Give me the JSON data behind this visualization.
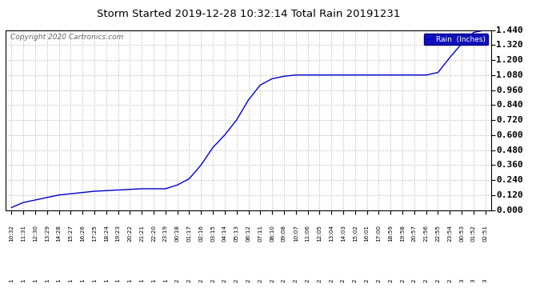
{
  "title": "Storm Started 2019-12-28 10:32:14 Total Rain 20191231",
  "copyright": "Copyright 2020 Cartronics.com",
  "legend_label": "Rain  (Inches)",
  "line_color": "#0000cc",
  "background_color": "#ffffff",
  "grid_color": "#b0b0b0",
  "ylim": [
    0.0,
    1.44
  ],
  "ytick_values": [
    0.0,
    0.12,
    0.24,
    0.36,
    0.48,
    0.6,
    0.72,
    0.84,
    0.96,
    1.08,
    1.2,
    1.32,
    1.44
  ],
  "ytick_labels": [
    "0.000",
    "0.120",
    "0.240",
    "0.360",
    "0.480",
    "0.600",
    "0.720",
    "0.840",
    "0.960",
    "1.080",
    "1.200",
    "1.320",
    "1.440"
  ],
  "x_labels": [
    "10:32",
    "11:31",
    "12:30",
    "13:29",
    "14:28",
    "15:27",
    "16:26",
    "17:25",
    "18:24",
    "19:23",
    "20:22",
    "21:21",
    "22:20",
    "23:19",
    "00:18",
    "01:17",
    "02:16",
    "03:15",
    "04:14",
    "05:13",
    "06:12",
    "07:11",
    "08:10",
    "09:08",
    "10:07",
    "11:06",
    "12:05",
    "13:04",
    "14:03",
    "15:02",
    "16:01",
    "17:00",
    "18:59",
    "19:58",
    "20:57",
    "21:56",
    "22:55",
    "23:54",
    "00:53",
    "01:52",
    "02:51"
  ],
  "x_label_row2": [
    "1",
    "1",
    "1",
    "1",
    "1",
    "1",
    "1",
    "1",
    "1",
    "1",
    "1",
    "1",
    "1",
    "1",
    "2",
    "2",
    "2",
    "2",
    "2",
    "2",
    "2",
    "2",
    "2",
    "2",
    "2",
    "2",
    "2",
    "2",
    "2",
    "2",
    "2",
    "2",
    "2",
    "2",
    "2",
    "2",
    "2",
    "2",
    "3",
    "3",
    "3"
  ],
  "data_x": [
    0,
    1,
    2,
    3,
    4,
    5,
    6,
    7,
    8,
    9,
    10,
    11,
    12,
    13,
    14,
    15,
    16,
    17,
    18,
    19,
    20,
    21,
    22,
    23,
    24,
    25,
    26,
    27,
    28,
    29,
    30,
    31,
    32,
    33,
    34,
    35,
    36,
    37,
    38,
    39,
    40
  ],
  "data_y": [
    0.02,
    0.06,
    0.08,
    0.1,
    0.12,
    0.13,
    0.14,
    0.15,
    0.155,
    0.16,
    0.165,
    0.17,
    0.17,
    0.17,
    0.2,
    0.25,
    0.36,
    0.5,
    0.6,
    0.72,
    0.88,
    1.0,
    1.05,
    1.07,
    1.08,
    1.08,
    1.08,
    1.08,
    1.08,
    1.08,
    1.08,
    1.08,
    1.08,
    1.08,
    1.08,
    1.08,
    1.1,
    1.22,
    1.33,
    1.42,
    1.44
  ]
}
